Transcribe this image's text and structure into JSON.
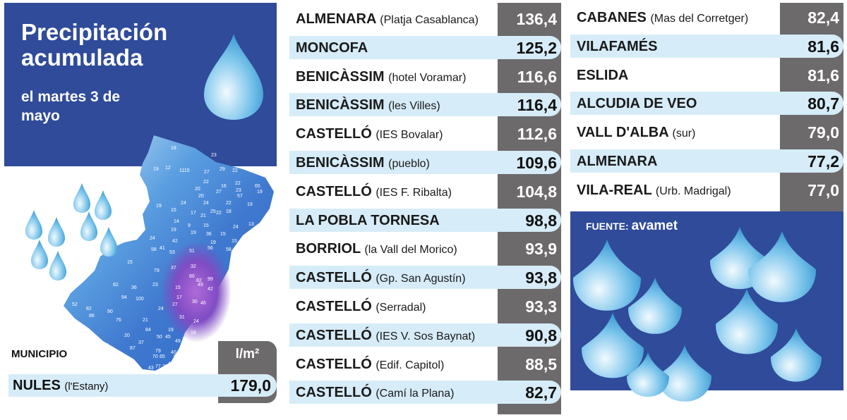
{
  "header": {
    "title": "Precipitación acumulada",
    "subtitle": "el martes 3 de mayo"
  },
  "table_header": {
    "municipio_label": "MUNICIPIO",
    "unit_label": "l/m²"
  },
  "source": {
    "label": "FUENTE:",
    "name": "avamet"
  },
  "map_labels": [
    "18",
    "23",
    "19",
    "12",
    "1115",
    "27",
    "29",
    "22",
    "22",
    "20",
    "16",
    "22",
    "65",
    "27",
    "23",
    "19",
    "20",
    "57",
    "18",
    "24",
    "24",
    "22",
    "19",
    "15",
    "25",
    "19",
    "17",
    "21",
    "22",
    "18",
    "14",
    "9",
    "15",
    "24",
    "13",
    "19",
    "19",
    "36",
    "15",
    "38",
    "24",
    "42",
    "19",
    "15",
    "51",
    "56",
    "58",
    "41",
    "53",
    "58",
    "15",
    "32",
    "79",
    "37",
    "60",
    "82",
    "99",
    "82",
    "23",
    "36",
    "15",
    "49",
    "42",
    "94",
    "100",
    "17",
    "30",
    "46",
    "52",
    "86",
    "90",
    "21",
    "24",
    "24",
    "76",
    "31",
    "84",
    "19",
    "20",
    "50",
    "45",
    "49",
    "18",
    "24",
    "37",
    "79",
    "40",
    "47",
    "43",
    "77",
    "28",
    "63",
    "70",
    "65",
    "48",
    "73",
    "77",
    "87",
    "82",
    "27"
  ],
  "chart_data": {
    "type": "table",
    "title": "Precipitación acumulada",
    "subtitle": "el martes 3 de mayo",
    "unit": "l/m²",
    "rows": [
      {
        "station": "NULES",
        "detail": "(l'Estany)",
        "value": 179.0,
        "display": "179,0"
      },
      {
        "station": "ALMENARA",
        "detail": "(Platja Casablanca)",
        "value": 136.4,
        "display": "136,4"
      },
      {
        "station": "MONCOFA",
        "detail": "",
        "value": 125.2,
        "display": "125,2"
      },
      {
        "station": "BENICÀSSIM",
        "detail": "(hotel Voramar)",
        "value": 116.6,
        "display": "116,6"
      },
      {
        "station": "BENICÀSSIM",
        "detail": "(les Villes)",
        "value": 116.4,
        "display": "116,4"
      },
      {
        "station": "CASTELLÓ",
        "detail": "(IES Bovalar)",
        "value": 112.6,
        "display": "112,6"
      },
      {
        "station": "BENICÀSSIM",
        "detail": "(pueblo)",
        "value": 109.6,
        "display": "109,6"
      },
      {
        "station": "CASTELLÓ",
        "detail": "(IES F. Ribalta)",
        "value": 104.8,
        "display": "104,8"
      },
      {
        "station": "LA POBLA TORNESA",
        "detail": "",
        "value": 98.8,
        "display": "98,8"
      },
      {
        "station": "BORRIOL",
        "detail": "(la Vall del Morico)",
        "value": 93.9,
        "display": "93,9"
      },
      {
        "station": "CASTELLÓ",
        "detail": "(Gp. San Agustín)",
        "value": 93.8,
        "display": "93,8"
      },
      {
        "station": "CASTELLÓ",
        "detail": "(Serradal)",
        "value": 93.3,
        "display": "93,3"
      },
      {
        "station": "CASTELLÓ",
        "detail": "(IES V. Sos Baynat)",
        "value": 90.8,
        "display": "90,8"
      },
      {
        "station": "CASTELLÓ",
        "detail": "(Edif. Capitol)",
        "value": 88.5,
        "display": "88,5"
      },
      {
        "station": "CASTELLÓ",
        "detail": "(Camí la Plana)",
        "value": 82.7,
        "display": "82,7"
      },
      {
        "station": "CABANES",
        "detail": "(Mas del Corretger)",
        "value": 82.4,
        "display": "82,4"
      },
      {
        "station": "VILAFAMÉS",
        "detail": "",
        "value": 81.6,
        "display": "81,6"
      },
      {
        "station": "ESLIDA",
        "detail": "",
        "value": 81.6,
        "display": "81,6"
      },
      {
        "station": "ALCUDIA DE VEO",
        "detail": "",
        "value": 80.7,
        "display": "80,7"
      },
      {
        "station": "VALL D'ALBA",
        "detail": "(sur)",
        "value": 79.0,
        "display": "79,0"
      },
      {
        "station": "ALMENARA",
        "detail": "",
        "value": 77.2,
        "display": "77,2"
      },
      {
        "station": "VILA-REAL",
        "detail": "(Urb. Madrigal)",
        "value": 77.0,
        "display": "77,0"
      }
    ]
  },
  "colors": {
    "panel_blue": "#2f4b9a",
    "value_gray": "#6d6a6b",
    "highlight_row": "#d6ecf8",
    "drop_light": "#dff1fb",
    "drop_dark": "#2b8fc9",
    "map_light": "#bfe0f5",
    "map_mid": "#4f8fd6",
    "map_heavy": "#8a4fc0"
  }
}
